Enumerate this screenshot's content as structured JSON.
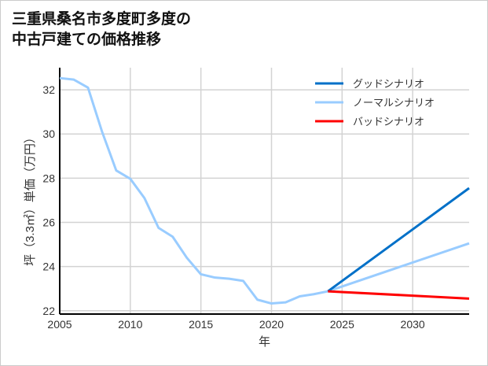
{
  "chart_data": {
    "type": "line",
    "title": [
      "三重県桑名市多度町多度の",
      "中古戸建ての価格推移"
    ],
    "xlabel": "年",
    "ylabel": "坪（3.3㎡）単価（万円）",
    "xlim": [
      2005,
      2034
    ],
    "ylim": [
      21.85,
      33
    ],
    "xticks": [
      2005,
      2010,
      2015,
      2020,
      2025,
      2030
    ],
    "yticks": [
      22,
      24,
      26,
      28,
      30,
      32
    ],
    "grid": true,
    "legend_position": "top-right",
    "series": [
      {
        "name": "グッドシナリオ",
        "color": "#0070c8",
        "x": [
          2024,
          2034
        ],
        "y": [
          22.88,
          27.55
        ]
      },
      {
        "name": "ノーマルシナリオ",
        "color": "#99ccff",
        "x": [
          2005,
          2006,
          2007,
          2008,
          2009,
          2010,
          2011,
          2012,
          2013,
          2014,
          2015,
          2016,
          2017,
          2018,
          2019,
          2020,
          2021,
          2022,
          2023,
          2024,
          2034
        ],
        "y": [
          32.53,
          32.46,
          32.1,
          30.1,
          28.35,
          27.97,
          27.1,
          25.75,
          25.35,
          24.4,
          23.65,
          23.5,
          23.45,
          23.35,
          22.5,
          22.33,
          22.38,
          22.65,
          22.75,
          22.88,
          25.05
        ]
      },
      {
        "name": "バッドシナリオ",
        "color": "#ff0000",
        "x": [
          2024,
          2034
        ],
        "y": [
          22.88,
          22.55
        ]
      }
    ]
  }
}
